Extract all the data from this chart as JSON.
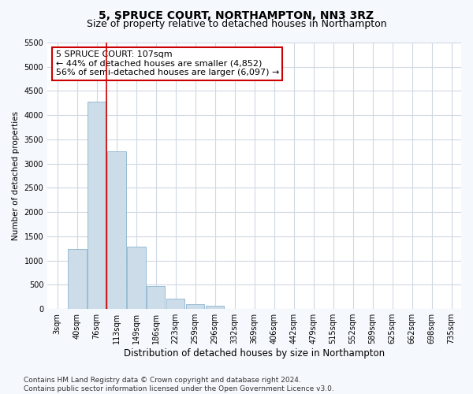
{
  "title": "5, SPRUCE COURT, NORTHAMPTON, NN3 3RZ",
  "subtitle": "Size of property relative to detached houses in Northampton",
  "xlabel": "Distribution of detached houses by size in Northampton",
  "ylabel": "Number of detached properties",
  "categories": [
    "3sqm",
    "40sqm",
    "76sqm",
    "113sqm",
    "149sqm",
    "186sqm",
    "223sqm",
    "259sqm",
    "296sqm",
    "332sqm",
    "369sqm",
    "406sqm",
    "442sqm",
    "479sqm",
    "515sqm",
    "552sqm",
    "589sqm",
    "625sqm",
    "662sqm",
    "698sqm",
    "735sqm"
  ],
  "values": [
    0,
    1230,
    4280,
    3250,
    1280,
    470,
    210,
    100,
    70,
    0,
    0,
    0,
    0,
    0,
    0,
    0,
    0,
    0,
    0,
    0,
    0
  ],
  "bar_color": "#ccdce8",
  "bar_edge_color": "#7aaac8",
  "vertical_line_color": "#cc0000",
  "annotation_text": "5 SPRUCE COURT: 107sqm\n← 44% of detached houses are smaller (4,852)\n56% of semi-detached houses are larger (6,097) →",
  "annotation_box_facecolor": "#ffffff",
  "annotation_box_edgecolor": "#cc0000",
  "ylim_max": 5500,
  "yticks": [
    0,
    500,
    1000,
    1500,
    2000,
    2500,
    3000,
    3500,
    4000,
    4500,
    5000,
    5500
  ],
  "footer": "Contains HM Land Registry data © Crown copyright and database right 2024.\nContains public sector information licensed under the Open Government Licence v3.0.",
  "plot_bg_color": "#ffffff",
  "fig_bg_color": "#f5f8fc",
  "grid_color": "#d0d8e4",
  "title_fontsize": 10,
  "subtitle_fontsize": 9,
  "xlabel_fontsize": 8.5,
  "ylabel_fontsize": 7.5,
  "tick_fontsize": 7,
  "annotation_fontsize": 8,
  "footer_fontsize": 6.5
}
